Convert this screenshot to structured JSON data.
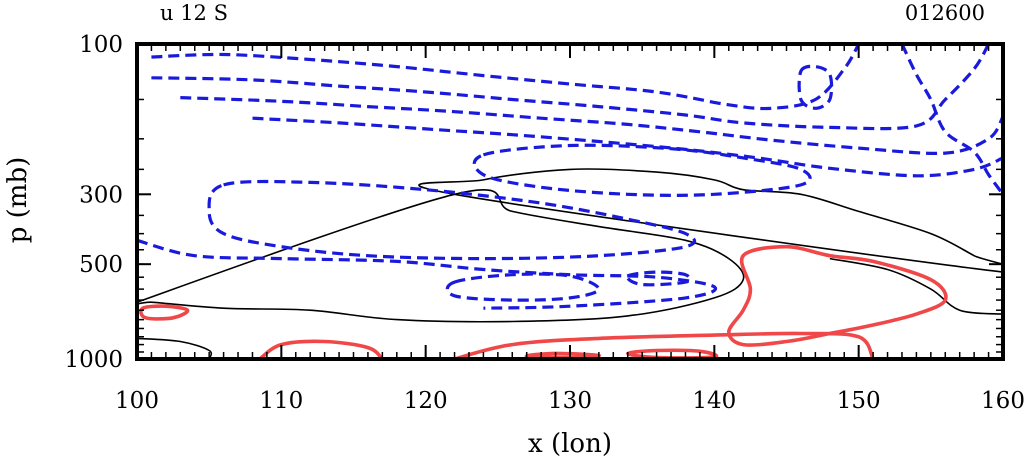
{
  "chart_data": {
    "type": "contour",
    "title_left": "u 12 S",
    "title_right": "012600",
    "xlabel": "x (lon)",
    "ylabel": "p (mb)",
    "xlim": [
      100,
      160
    ],
    "ylim": [
      1000,
      100
    ],
    "y_scale": "log",
    "x_ticks": [
      100,
      110,
      120,
      130,
      140,
      150,
      160
    ],
    "y_ticks": [
      100,
      300,
      500,
      1000
    ],
    "legend": "none",
    "grid": false,
    "colors": {
      "negative": "#1a1adc",
      "positive": "#f04848",
      "zero": "#000000"
    },
    "contours": [
      {
        "name": "contour-zero-upper",
        "kind": "zero",
        "closed": true,
        "points": [
          [
            122,
            300
          ],
          [
            124,
            270
          ],
          [
            130,
            250
          ],
          [
            136,
            255
          ],
          [
            140,
            270
          ],
          [
            142,
            290
          ],
          [
            146,
            300
          ],
          [
            150,
            340
          ],
          [
            155,
            400
          ],
          [
            158,
            470
          ],
          [
            160,
            530
          ]
        ]
      },
      {
        "name": "contour-zero-core",
        "kind": "zero",
        "closed": true,
        "points": [
          [
            122,
            300
          ],
          [
            126,
            340
          ],
          [
            132,
            380
          ],
          [
            138,
            420
          ],
          [
            141,
            480
          ],
          [
            142,
            560
          ],
          [
            140,
            640
          ],
          [
            134,
            730
          ],
          [
            126,
            760
          ],
          [
            118,
            750
          ],
          [
            112,
            700
          ],
          [
            106,
            690
          ],
          [
            101,
            660
          ],
          [
            100,
            660
          ]
        ]
      },
      {
        "name": "contour-zero-bottom-left",
        "kind": "zero",
        "closed": false,
        "points": [
          [
            100,
            860
          ],
          [
            103,
            880
          ],
          [
            105,
            940
          ],
          [
            105,
            1000
          ]
        ]
      },
      {
        "name": "contour-zero-right-low",
        "kind": "zero",
        "closed": false,
        "points": [
          [
            148,
            480
          ],
          [
            152,
            520
          ],
          [
            155,
            600
          ],
          [
            157,
            700
          ],
          [
            160,
            720
          ]
        ]
      },
      {
        "name": "contour-neg-top-1",
        "kind": "neg",
        "closed": false,
        "points": [
          [
            101,
            110
          ],
          [
            106,
            108
          ],
          [
            112,
            112
          ],
          [
            118,
            118
          ],
          [
            124,
            126
          ],
          [
            130,
            134
          ],
          [
            136,
            142
          ],
          [
            141,
            156
          ],
          [
            144,
            160
          ],
          [
            147,
            150
          ],
          [
            149,
            120
          ],
          [
            150,
            100
          ]
        ]
      },
      {
        "name": "contour-neg-top-2",
        "kind": "neg",
        "closed": false,
        "points": [
          [
            101,
            128
          ],
          [
            108,
            130
          ],
          [
            114,
            136
          ],
          [
            120,
            142
          ],
          [
            126,
            150
          ],
          [
            132,
            158
          ],
          [
            138,
            168
          ],
          [
            142,
            178
          ],
          [
            148,
            184
          ],
          [
            154,
            182
          ],
          [
            156,
            150
          ],
          [
            158,
            120
          ],
          [
            159,
            100
          ]
        ]
      },
      {
        "name": "contour-neg-top-3",
        "kind": "neg",
        "closed": false,
        "points": [
          [
            103,
            148
          ],
          [
            110,
            152
          ],
          [
            116,
            158
          ],
          [
            122,
            164
          ],
          [
            128,
            172
          ],
          [
            134,
            180
          ],
          [
            139,
            190
          ],
          [
            144,
            202
          ],
          [
            150,
            214
          ],
          [
            156,
            222
          ],
          [
            159,
            200
          ],
          [
            160,
            170
          ]
        ]
      },
      {
        "name": "contour-neg-top-4",
        "kind": "neg",
        "closed": false,
        "points": [
          [
            108,
            172
          ],
          [
            114,
            178
          ],
          [
            120,
            186
          ],
          [
            126,
            194
          ],
          [
            132,
            204
          ],
          [
            138,
            216
          ],
          [
            143,
            230
          ],
          [
            148,
            248
          ],
          [
            154,
            262
          ],
          [
            158,
            250
          ],
          [
            160,
            230
          ]
        ]
      },
      {
        "name": "contour-neg-mid-loop-1",
        "kind": "neg",
        "closed": true,
        "points": [
          [
            124,
            225
          ],
          [
            130,
            210
          ],
          [
            137,
            215
          ],
          [
            142,
            230
          ],
          [
            146,
            250
          ],
          [
            146,
            280
          ],
          [
            140,
            300
          ],
          [
            134,
            300
          ],
          [
            128,
            285
          ],
          [
            124,
            260
          ]
        ]
      },
      {
        "name": "contour-neg-mid-loop-2",
        "kind": "neg",
        "closed": true,
        "points": [
          [
            106,
            280
          ],
          [
            112,
            275
          ],
          [
            120,
            290
          ],
          [
            128,
            320
          ],
          [
            134,
            360
          ],
          [
            138,
            400
          ],
          [
            138,
            440
          ],
          [
            132,
            470
          ],
          [
            124,
            480
          ],
          [
            116,
            470
          ],
          [
            110,
            440
          ],
          [
            106,
            400
          ],
          [
            105,
            340
          ]
        ]
      },
      {
        "name": "contour-neg-low-arc",
        "kind": "neg",
        "closed": false,
        "points": [
          [
            100,
            420
          ],
          [
            104,
            470
          ],
          [
            110,
            480
          ],
          [
            118,
            490
          ],
          [
            124,
            520
          ],
          [
            130,
            540
          ],
          [
            136,
            550
          ],
          [
            140,
            590
          ],
          [
            138,
            640
          ],
          [
            130,
            680
          ],
          [
            124,
            690
          ]
        ]
      },
      {
        "name": "contour-neg-core-loop",
        "kind": "neg",
        "closed": true,
        "points": [
          [
            122,
            570
          ],
          [
            126,
            540
          ],
          [
            130,
            545
          ],
          [
            132,
            600
          ],
          [
            130,
            640
          ],
          [
            126,
            650
          ],
          [
            122,
            630
          ]
        ]
      },
      {
        "name": "contour-neg-small-loop",
        "kind": "neg",
        "closed": true,
        "points": [
          [
            134,
            545
          ],
          [
            136,
            530
          ],
          [
            138,
            540
          ],
          [
            138,
            570
          ],
          [
            135,
            580
          ]
        ]
      },
      {
        "name": "contour-neg-cap-loop",
        "kind": "neg",
        "closed": true,
        "points": [
          [
            146,
            122
          ],
          [
            147,
            118
          ],
          [
            148,
            125
          ],
          [
            148,
            150
          ],
          [
            147,
            160
          ],
          [
            146,
            150
          ]
        ]
      },
      {
        "name": "contour-neg-right-edge",
        "kind": "neg",
        "closed": false,
        "points": [
          [
            153,
            100
          ],
          [
            154,
            125
          ],
          [
            155,
            150
          ],
          [
            156,
            190
          ],
          [
            158,
            220
          ],
          [
            159,
            260
          ],
          [
            160,
            300
          ]
        ]
      },
      {
        "name": "contour-pos-left-blob",
        "kind": "pos",
        "closed": true,
        "points": [
          [
            100.4,
            690
          ],
          [
            102,
            680
          ],
          [
            103.5,
            700
          ],
          [
            102.5,
            740
          ],
          [
            100.6,
            740
          ]
        ]
      },
      {
        "name": "contour-pos-bottom-1",
        "kind": "pos",
        "closed": false,
        "points": [
          [
            108.5,
            1000
          ],
          [
            110,
            900
          ],
          [
            113,
            880
          ],
          [
            116,
            920
          ],
          [
            117,
            1000
          ]
        ]
      },
      {
        "name": "contour-pos-bottom-2",
        "kind": "pos",
        "closed": false,
        "points": [
          [
            122,
            1000
          ],
          [
            126,
            900
          ],
          [
            132,
            860
          ],
          [
            140,
            840
          ],
          [
            146,
            830
          ],
          [
            150,
            850
          ],
          [
            151,
            1000
          ]
        ]
      },
      {
        "name": "contour-pos-right-blob",
        "kind": "pos",
        "closed": true,
        "points": [
          [
            142,
            470
          ],
          [
            145,
            440
          ],
          [
            148,
            470
          ],
          [
            151,
            490
          ],
          [
            155,
            560
          ],
          [
            156,
            650
          ],
          [
            154,
            720
          ],
          [
            151,
            780
          ],
          [
            148,
            830
          ],
          [
            145,
            880
          ],
          [
            142,
            900
          ],
          [
            141,
            820
          ],
          [
            142,
            700
          ],
          [
            142.5,
            600
          ]
        ]
      },
      {
        "name": "contour-pos-small-1",
        "kind": "pos",
        "closed": true,
        "points": [
          [
            127,
            980
          ],
          [
            129,
            960
          ],
          [
            132,
            975
          ],
          [
            130,
            990
          ]
        ]
      },
      {
        "name": "contour-pos-small-2",
        "kind": "pos",
        "closed": true,
        "points": [
          [
            134,
            960
          ],
          [
            136,
            940
          ],
          [
            139,
            945
          ],
          [
            140,
            985
          ],
          [
            136,
            990
          ]
        ]
      }
    ]
  }
}
